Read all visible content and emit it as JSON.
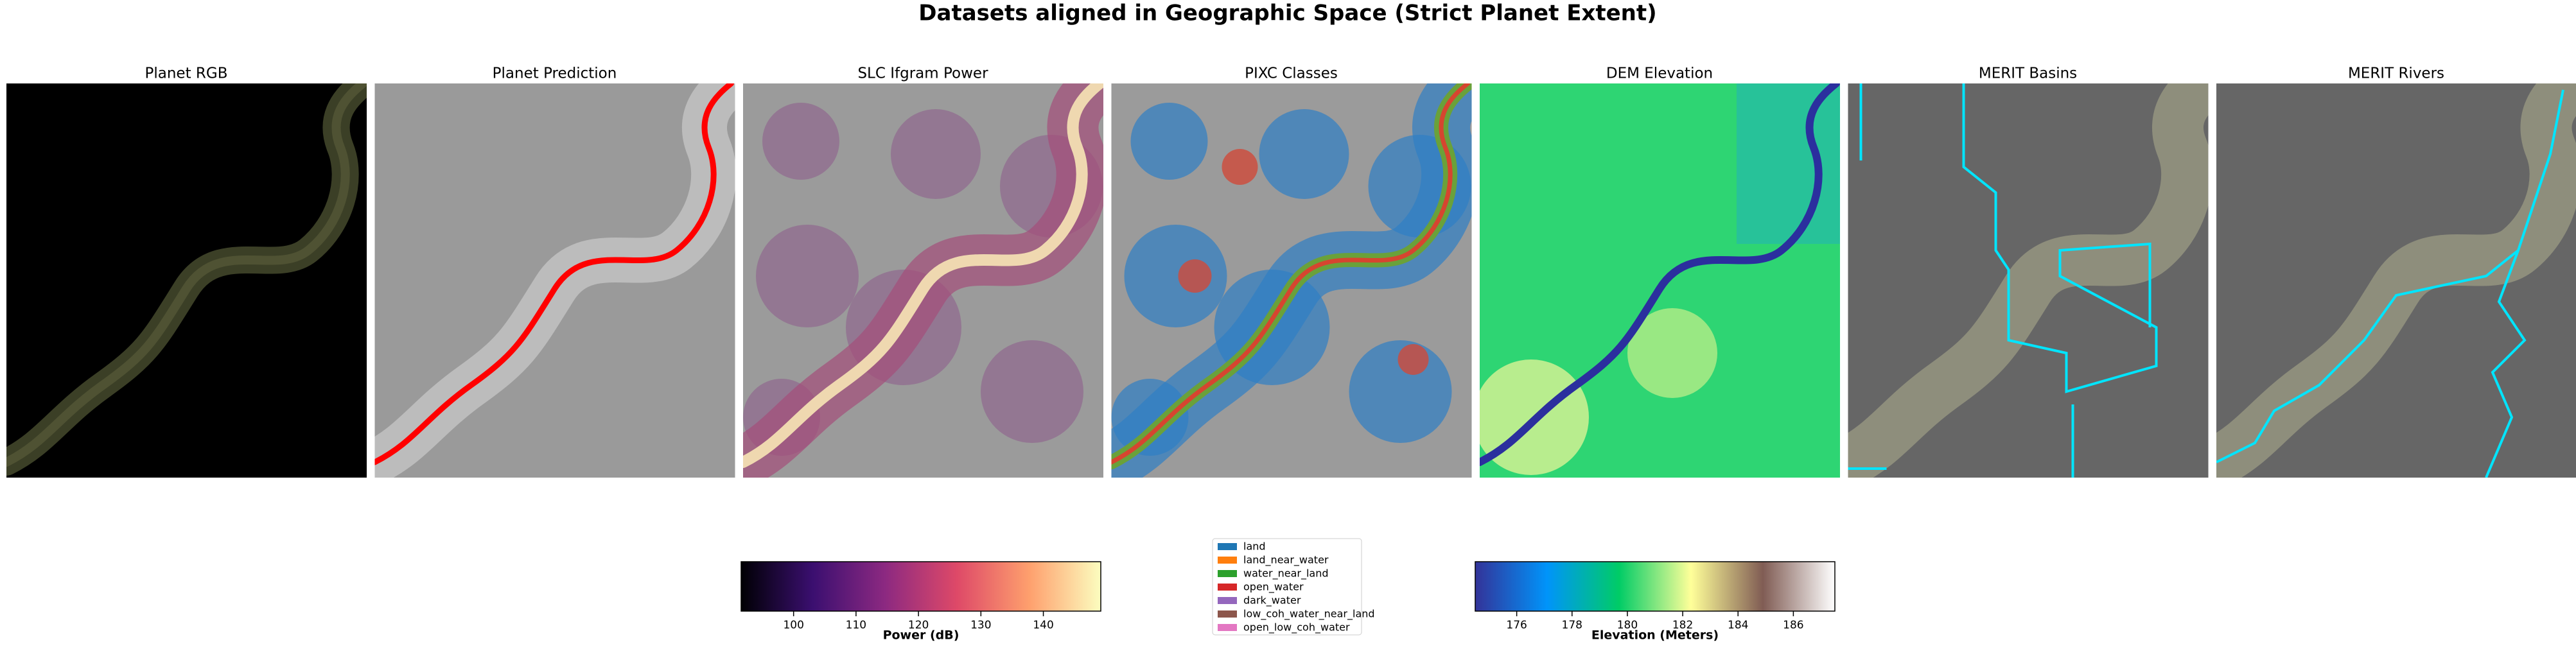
{
  "title": "Datasets aligned in Geographic Space (Strict Planet Extent)",
  "chart_data": [
    {
      "type": "image",
      "title": "Planet RGB"
    },
    {
      "type": "image",
      "title": "Planet Prediction"
    },
    {
      "type": "image",
      "title": "SLC Ifgram Power"
    },
    {
      "type": "image",
      "title": "PIXC Classes"
    },
    {
      "type": "image",
      "title": "DEM Elevation"
    },
    {
      "type": "image",
      "title": "MERIT Basins"
    },
    {
      "type": "image",
      "title": "MERIT Rivers"
    },
    {
      "type": "colorbar",
      "xlabel": "Power (dB)",
      "xlim": [
        91.6,
        149.2
      ],
      "xticks": [
        100,
        110,
        120,
        130,
        140
      ],
      "colors": [
        "#000004",
        "#3b0f70",
        "#8c2981",
        "#de4968",
        "#fe9f6d",
        "#fcfdbf"
      ]
    },
    {
      "type": "legend",
      "series": [
        {
          "name": "land",
          "color": "#1f77b4"
        },
        {
          "name": "land_near_water",
          "color": "#ff7f0e"
        },
        {
          "name": "water_near_land",
          "color": "#2ca02c"
        },
        {
          "name": "open_water",
          "color": "#d62728"
        },
        {
          "name": "dark_water",
          "color": "#9467bd"
        },
        {
          "name": "low_coh_water_near_land",
          "color": "#8c564b"
        },
        {
          "name": "open_low_coh_water",
          "color": "#e377c2"
        }
      ]
    },
    {
      "type": "colorbar",
      "xlabel": "Elevation (Meters)",
      "xlim": [
        174.5,
        187.5
      ],
      "xticks": [
        176,
        178,
        180,
        182,
        184,
        186
      ],
      "colors": [
        "#333399",
        "#0094fa",
        "#00cc66",
        "#ffff99",
        "#805c54",
        "#ffffff"
      ]
    }
  ]
}
